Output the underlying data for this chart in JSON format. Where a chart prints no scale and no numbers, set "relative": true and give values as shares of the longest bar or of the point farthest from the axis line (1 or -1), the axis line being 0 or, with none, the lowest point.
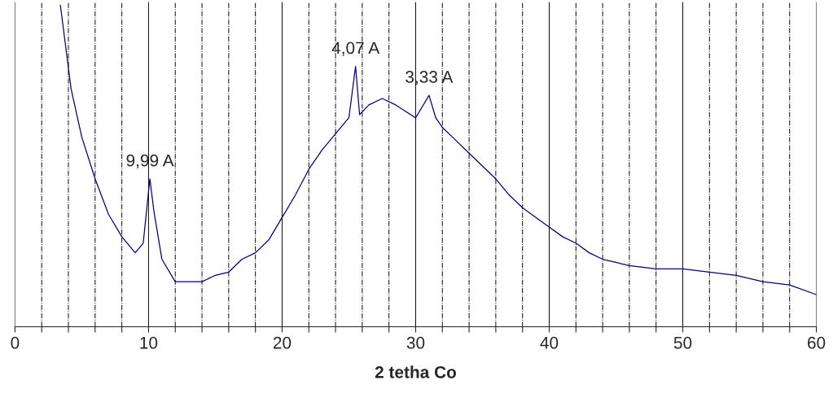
{
  "chart_data": {
    "type": "line",
    "xlabel": "2 tetha Co",
    "relative": true,
    "xlim": [
      0,
      60
    ],
    "xticks": [
      0,
      {
        "value": 2,
        "label": null
      },
      {
        "value": 4,
        "label": null
      },
      {
        "value": 6,
        "label": null
      },
      {
        "value": 8,
        "label": null
      },
      10,
      {
        "value": 12,
        "label": null
      },
      {
        "value": 14,
        "label": null
      },
      {
        "value": 16,
        "label": null
      },
      {
        "value": 18,
        "label": null
      },
      20,
      {
        "value": 22,
        "label": null
      },
      {
        "value": 24,
        "label": null
      },
      {
        "value": 26,
        "label": null
      },
      {
        "value": 28,
        "label": null
      },
      30,
      {
        "value": 32,
        "label": null
      },
      {
        "value": 34,
        "label": null
      },
      {
        "value": 36,
        "label": null
      },
      {
        "value": 38,
        "label": null
      },
      40,
      {
        "value": 42,
        "label": null
      },
      {
        "value": 44,
        "label": null
      },
      {
        "value": 46,
        "label": null
      },
      {
        "value": 48,
        "label": null
      },
      50,
      {
        "value": 52,
        "label": null
      },
      {
        "value": 54,
        "label": null
      },
      {
        "value": 56,
        "label": null
      },
      {
        "value": 58,
        "label": null
      },
      60
    ],
    "grid": "x",
    "tick_labels": "x",
    "marker": "none",
    "line_style": "solid",
    "series": [
      {
        "color": "#000080",
        "x": [
          3.4,
          3.8,
          4.2,
          5,
          6,
          7,
          8,
          9,
          9.6,
          10.1,
          10.4,
          11,
          12,
          13,
          14,
          15,
          16,
          17,
          18,
          19,
          20,
          21,
          22,
          23,
          24,
          25,
          25.5,
          25.8,
          26.5,
          27.5,
          28.5,
          30,
          31,
          31.5,
          32,
          33,
          34,
          35,
          36,
          37,
          38,
          39,
          40,
          41,
          42,
          43,
          44,
          45,
          46,
          48,
          50,
          52,
          54,
          56,
          58,
          60
        ],
        "values": [
          1.0,
          0.87,
          0.74,
          0.59,
          0.46,
          0.35,
          0.28,
          0.23,
          0.26,
          0.46,
          0.36,
          0.21,
          0.14,
          0.14,
          0.14,
          0.16,
          0.17,
          0.21,
          0.23,
          0.27,
          0.34,
          0.41,
          0.49,
          0.55,
          0.6,
          0.65,
          0.81,
          0.66,
          0.69,
          0.71,
          0.69,
          0.65,
          0.72,
          0.65,
          0.62,
          0.58,
          0.54,
          0.5,
          0.46,
          0.41,
          0.37,
          0.34,
          0.31,
          0.28,
          0.26,
          0.23,
          0.21,
          0.2,
          0.19,
          0.18,
          0.18,
          0.17,
          0.16,
          0.14,
          0.13,
          0.1
        ]
      }
    ],
    "annotations": [
      {
        "text": "9,99 A",
        "x": 10.1,
        "y": 0.46
      },
      {
        "text": "4,07 A",
        "x": 25.5,
        "y": 0.81
      },
      {
        "text": "3,33 A",
        "x": 31,
        "y": 0.72
      }
    ]
  }
}
